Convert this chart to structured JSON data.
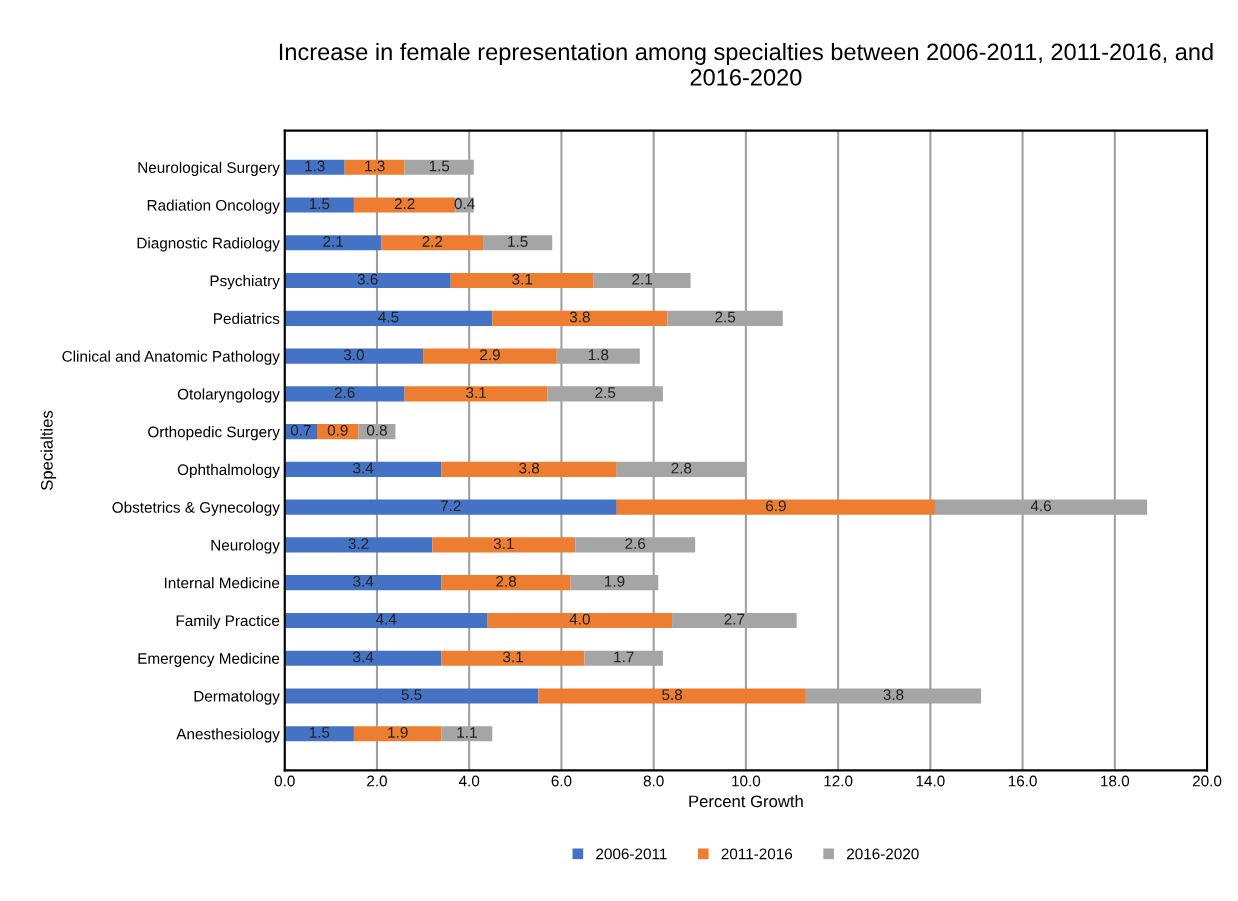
{
  "chart_data": {
    "type": "bar",
    "orientation": "horizontal",
    "stacked": true,
    "title": "Increase in female representation among specialties between 2006-2011, 2011-2016, and 2016-2020",
    "xlabel": "Percent Growth",
    "ylabel": "Specialties",
    "categories": [
      "Neurological Surgery",
      "Radiation Oncology",
      "Diagnostic Radiology",
      "Psychiatry",
      "Pediatrics",
      "Clinical and Anatomic Pathology",
      "Otolaryngology",
      "Orthopedic Surgery",
      "Ophthalmology",
      "Obstetrics & Gynecology",
      "Neurology",
      "Internal Medicine",
      "Family Practice",
      "Emergency Medicine",
      "Dermatology",
      "Anesthesiology"
    ],
    "series": [
      {
        "name": "2006-2011",
        "color": "#4472c4",
        "values": [
          1.3,
          1.5,
          2.1,
          3.6,
          4.5,
          3.0,
          2.6,
          0.7,
          3.4,
          7.2,
          3.2,
          3.4,
          4.4,
          3.4,
          5.5,
          1.5
        ],
        "value_labels": [
          "1.3",
          "1.5",
          "2.1",
          "3.6",
          "4.5",
          "3.0",
          "2.6",
          "0.7",
          "3.4",
          "7.2",
          "3.2",
          "3.4",
          "4.4",
          "3.4",
          "5.5",
          "1.5"
        ]
      },
      {
        "name": "2011-2016",
        "color": "#ed7d31",
        "values": [
          1.3,
          2.2,
          2.2,
          3.1,
          3.8,
          2.9,
          3.1,
          0.9,
          3.8,
          6.9,
          3.1,
          2.8,
          4.0,
          3.1,
          5.8,
          1.9
        ],
        "value_labels": [
          "1.3",
          "2.2",
          "2.2",
          "3.1",
          "3.8",
          "2.9",
          "3.1",
          "0.9",
          "3.8",
          "6.9",
          "3.1",
          "2.8",
          "4.0",
          "3.1",
          "5.8",
          "1.9"
        ]
      },
      {
        "name": "2016-2020",
        "color": "#a5a5a5",
        "values": [
          1.5,
          0.4,
          1.5,
          2.1,
          2.5,
          1.8,
          2.5,
          0.8,
          2.8,
          4.6,
          2.6,
          1.9,
          2.7,
          1.7,
          3.8,
          1.1
        ],
        "value_labels": [
          "1.5",
          "0.4",
          "1.5",
          "2.1",
          "2.5",
          "1.8",
          "2.5",
          "0.8",
          "2.8",
          "4.6",
          "2.6",
          "1.9",
          "2.7",
          "1.7",
          "3.8",
          "1.1"
        ]
      }
    ],
    "xlim": [
      0,
      20
    ],
    "xticks": [
      {
        "value": 0,
        "label": "0.0"
      },
      {
        "value": 2,
        "label": "2.0"
      },
      {
        "value": 4,
        "label": "4.0"
      },
      {
        "value": 6,
        "label": "6.0"
      },
      {
        "value": 8,
        "label": "8.0"
      },
      {
        "value": 10,
        "label": "10.0"
      },
      {
        "value": 12,
        "label": "12.0"
      },
      {
        "value": 14,
        "label": "14.0"
      },
      {
        "value": 16,
        "label": "16.0"
      },
      {
        "value": 18,
        "label": "18.0"
      },
      {
        "value": 20,
        "label": "20.0"
      }
    ],
    "grid": "x",
    "legend": "bottom"
  }
}
